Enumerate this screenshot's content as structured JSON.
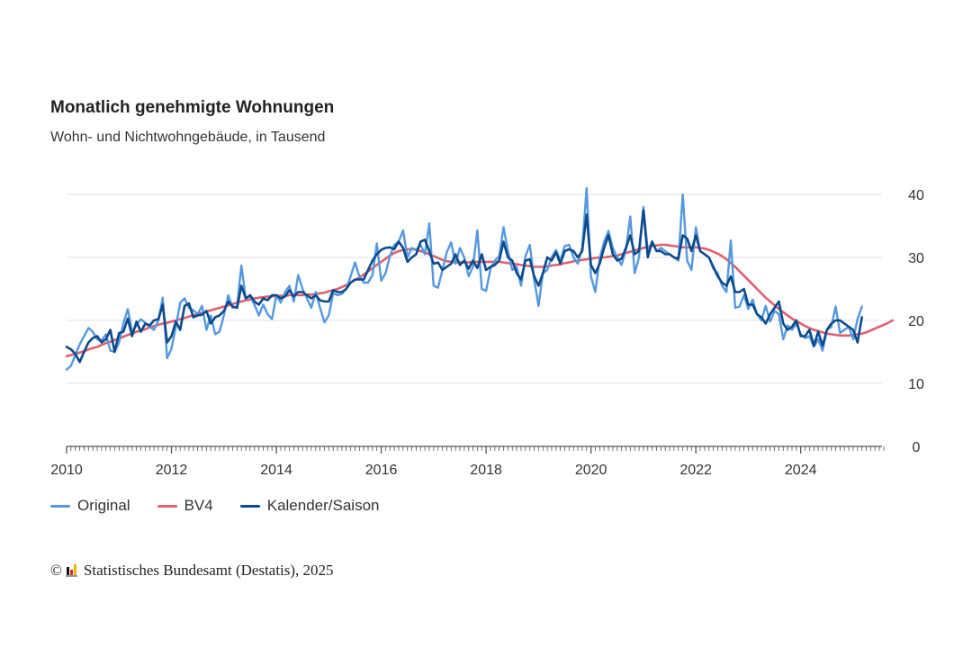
{
  "header": {
    "title": "Monatlich genehmigte Wohnungen",
    "subtitle": "Wohn- und Nichtwohngebäude, in Tausend"
  },
  "footer": {
    "copyright_symbol": "©",
    "source": "Statistisches Bundesamt (Destatis), 2025"
  },
  "colors": {
    "original": "#5598e0",
    "bv4": "#e0606e",
    "kalender_saison": "#0b4a8c",
    "grid": "#e2e2e2",
    "axis": "#555555"
  },
  "chart_data": {
    "type": "line",
    "title": "Monatlich genehmigte Wohnungen",
    "subtitle": "Wohn- und Nichtwohngebäude, in Tausend",
    "xlabel": "",
    "ylabel": "",
    "x_start": "2010-01",
    "x_frequency": "monthly",
    "xlim": [
      2010.0,
      2025.55
    ],
    "ylim": [
      0,
      40
    ],
    "yticks": [
      "0",
      "10",
      "20",
      "30",
      "40"
    ],
    "ytick_values": [
      0,
      10,
      20,
      30,
      40
    ],
    "xticks": [
      "2010",
      "2012",
      "2014",
      "2016",
      "2018",
      "2020",
      "2022",
      "2024"
    ],
    "xtick_values": [
      2010,
      2012,
      2014,
      2016,
      2018,
      2020,
      2022,
      2024
    ],
    "grid": true,
    "y_axis_side": "right",
    "legend_position": "bottom-left",
    "legend": [
      "Original",
      "BV4",
      "Kalender/Saison"
    ],
    "series": [
      {
        "name": "Original",
        "values": [
          12.2,
          12.8,
          14.5,
          16.2,
          17.5,
          18.8,
          18.2,
          17.0,
          16.8,
          17.8,
          15.2,
          15.0,
          16.5,
          19.5,
          21.8,
          18.2,
          19.2,
          20.2,
          19.6,
          19.0,
          18.5,
          20.0,
          23.6,
          14.0,
          15.5,
          19.0,
          22.8,
          23.5,
          22.0,
          21.6,
          21.0,
          22.3,
          18.5,
          20.8,
          17.8,
          18.2,
          20.8,
          24.0,
          22.0,
          22.2,
          28.7,
          23.5,
          23.8,
          22.5,
          20.8,
          22.5,
          21.0,
          20.2,
          24.0,
          22.8,
          24.5,
          25.5,
          23.0,
          27.2,
          25.0,
          23.5,
          22.0,
          24.5,
          22.0,
          19.7,
          20.8,
          24.3,
          24.0,
          24.2,
          25.0,
          27.0,
          29.2,
          27.0,
          26.0,
          26.0,
          27.2,
          32.2,
          26.3,
          27.5,
          30.2,
          32.0,
          32.5,
          34.3,
          30.0,
          31.5,
          31.2,
          32.0,
          30.5,
          35.4,
          25.5,
          25.2,
          28.0,
          30.8,
          32.4,
          29.0,
          31.5,
          30.0,
          27.0,
          28.5,
          34.3,
          25.0,
          24.7,
          28.2,
          29.5,
          30.2,
          34.8,
          31.0,
          28.0,
          28.5,
          25.5,
          30.2,
          32.0,
          26.5,
          22.3,
          27.5,
          28.0,
          30.0,
          31.2,
          29.5,
          31.8,
          32.0,
          30.0,
          29.0,
          31.5,
          41.0,
          27.0,
          24.5,
          29.8,
          32.5,
          34.2,
          31.5,
          30.0,
          28.8,
          31.2,
          36.5,
          27.5,
          30.0,
          38.0,
          31.0,
          32.5,
          31.0,
          31.5,
          31.0,
          30.5,
          30.0,
          29.5,
          40.0,
          29.5,
          28.0,
          34.8,
          31.0,
          30.5,
          30.0,
          28.2,
          27.5,
          25.5,
          24.5,
          32.7,
          22.0,
          22.2,
          24.0,
          21.8,
          23.3,
          21.0,
          20.0,
          22.3,
          19.8,
          21.5,
          21.0,
          17.0,
          19.2,
          18.5,
          19.5,
          17.8,
          17.2,
          17.5,
          15.8,
          17.0,
          15.2,
          18.5,
          19.0,
          22.2,
          18.0,
          18.5,
          19.0,
          17.0,
          20.2,
          22.2
        ]
      },
      {
        "name": "BV4",
        "values": [
          14.3,
          14.5,
          14.7,
          14.9,
          15.1,
          15.4,
          15.6,
          15.8,
          16.1,
          16.4,
          16.6,
          16.9,
          17.1,
          17.4,
          17.7,
          17.9,
          18.2,
          18.4,
          18.6,
          18.9,
          19.1,
          19.3,
          19.5,
          19.6,
          19.8,
          20.0,
          20.2,
          20.4,
          20.6,
          20.8,
          21.0,
          21.2,
          21.4,
          21.6,
          21.8,
          22.0,
          22.2,
          22.4,
          22.6,
          22.8,
          23.0,
          23.2,
          23.3,
          23.5,
          23.6,
          23.7,
          23.8,
          23.8,
          23.9,
          23.9,
          23.9,
          24.0,
          24.0,
          24.0,
          24.0,
          24.1,
          24.1,
          24.2,
          24.3,
          24.4,
          24.6,
          24.8,
          25.0,
          25.3,
          25.6,
          26.0,
          26.4,
          26.8,
          27.3,
          27.8,
          28.3,
          28.8,
          29.3,
          29.8,
          30.3,
          30.7,
          31.0,
          31.2,
          31.3,
          31.3,
          31.2,
          31.0,
          30.8,
          30.5,
          30.2,
          29.9,
          29.6,
          29.4,
          29.3,
          29.2,
          29.2,
          29.2,
          29.2,
          29.3,
          29.3,
          29.3,
          29.3,
          29.3,
          29.3,
          29.3,
          29.2,
          29.1,
          29.0,
          28.9,
          28.8,
          28.7,
          28.6,
          28.5,
          28.5,
          28.5,
          28.6,
          28.7,
          28.8,
          28.9,
          29.1,
          29.2,
          29.4,
          29.5,
          29.6,
          29.7,
          29.8,
          29.9,
          30.0,
          30.0,
          30.1,
          30.2,
          30.3,
          30.5,
          30.7,
          30.9,
          31.1,
          31.3,
          31.5,
          31.7,
          31.8,
          31.9,
          32.0,
          32.0,
          31.9,
          31.8,
          31.7,
          31.6,
          31.6,
          31.6,
          31.6,
          31.5,
          31.4,
          31.2,
          30.9,
          30.6,
          30.2,
          29.7,
          29.1,
          28.5,
          27.8,
          27.1,
          26.4,
          25.7,
          25.0,
          24.3,
          23.6,
          23.0,
          22.4,
          21.8,
          21.3,
          20.8,
          20.3,
          19.9,
          19.5,
          19.1,
          18.8,
          18.5,
          18.3,
          18.1,
          17.9,
          17.8,
          17.7,
          17.6,
          17.6,
          17.6,
          17.7,
          17.8,
          17.9,
          18.1,
          18.4,
          18.7,
          19.0,
          19.3,
          19.6,
          20.0
        ]
      },
      {
        "name": "Kalender/Saison",
        "values": [
          15.8,
          15.4,
          14.7,
          13.4,
          15.0,
          16.5,
          17.2,
          17.5,
          16.5,
          17.0,
          18.5,
          15.0,
          18.0,
          18.2,
          20.3,
          17.5,
          19.8,
          18.2,
          19.5,
          19.2,
          20.0,
          20.2,
          22.5,
          16.5,
          17.5,
          19.8,
          18.5,
          22.3,
          22.7,
          20.5,
          20.8,
          20.9,
          21.5,
          19.5,
          20.5,
          20.8,
          21.5,
          23.0,
          22.2,
          22.0,
          25.5,
          23.5,
          24.0,
          23.0,
          22.5,
          23.5,
          23.2,
          24.0,
          24.0,
          23.5,
          23.8,
          24.8,
          23.8,
          24.5,
          24.5,
          24.0,
          23.5,
          24.0,
          23.2,
          23.0,
          23.0,
          24.8,
          24.5,
          24.5,
          25.0,
          26.0,
          26.5,
          26.5,
          26.5,
          28.0,
          29.5,
          30.5,
          31.2,
          31.5,
          31.6,
          31.3,
          32.5,
          31.5,
          29.3,
          30.0,
          30.5,
          32.5,
          32.8,
          31.0,
          29.0,
          29.2,
          28.0,
          28.5,
          29.0,
          30.5,
          28.8,
          29.5,
          28.2,
          29.5,
          28.3,
          30.5,
          28.0,
          28.5,
          28.8,
          29.5,
          32.5,
          30.0,
          29.5,
          27.5,
          26.5,
          29.5,
          29.7,
          27.0,
          25.5,
          27.5,
          30.0,
          29.5,
          30.8,
          29.0,
          31.0,
          31.3,
          31.0,
          30.0,
          31.0,
          36.8,
          28.8,
          27.5,
          29.0,
          31.5,
          33.5,
          30.5,
          29.5,
          29.8,
          31.5,
          33.5,
          30.5,
          31.0,
          37.5,
          30.0,
          32.5,
          31.0,
          31.0,
          30.5,
          30.5,
          30.0,
          29.8,
          33.5,
          33.0,
          31.0,
          33.5,
          31.0,
          30.5,
          30.0,
          28.5,
          27.0,
          26.0,
          25.5,
          27.0,
          24.5,
          24.5,
          25.0,
          22.5,
          22.5,
          21.0,
          20.5,
          19.5,
          21.0,
          22.0,
          23.0,
          19.5,
          18.5,
          19.0,
          20.0,
          17.5,
          17.5,
          18.5,
          16.0,
          18.2,
          16.0,
          18.5,
          19.5,
          20.0,
          20.0,
          19.5,
          19.0,
          18.5,
          16.5,
          20.5
        ]
      }
    ]
  }
}
